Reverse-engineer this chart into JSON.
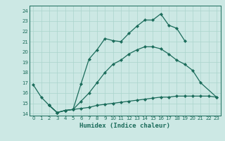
{
  "xlabel": "Humidex (Indice chaleur)",
  "bg_color": "#cce8e4",
  "grid_color": "#aad4cc",
  "line_color": "#1a6b5a",
  "xlim": [
    -0.5,
    23.5
  ],
  "ylim": [
    13.8,
    24.5
  ],
  "xticks": [
    0,
    1,
    2,
    3,
    4,
    5,
    6,
    7,
    8,
    9,
    10,
    11,
    12,
    13,
    14,
    15,
    16,
    17,
    18,
    19,
    20,
    21,
    22,
    23
  ],
  "yticks": [
    14,
    15,
    16,
    17,
    18,
    19,
    20,
    21,
    22,
    23,
    24
  ],
  "curve_top": {
    "x": [
      0,
      1,
      2,
      3,
      4,
      5,
      6,
      7,
      8,
      9,
      10,
      11,
      12,
      13,
      14,
      15,
      16,
      17,
      18,
      19
    ],
    "y": [
      16.8,
      15.6,
      14.8,
      14.1,
      14.3,
      14.4,
      16.9,
      19.3,
      20.2,
      21.3,
      21.1,
      21.0,
      21.8,
      22.5,
      23.1,
      23.1,
      23.7,
      22.6,
      22.3,
      21.1
    ]
  },
  "curve_mid": {
    "x": [
      2,
      3,
      4,
      5,
      6,
      7,
      8,
      9,
      10,
      11,
      12,
      13,
      14,
      15,
      16,
      17,
      18,
      19,
      20,
      21,
      23
    ],
    "y": [
      14.8,
      14.1,
      14.3,
      14.4,
      15.2,
      16.0,
      17.0,
      18.0,
      18.8,
      19.2,
      19.8,
      20.2,
      20.5,
      20.5,
      20.3,
      19.8,
      19.2,
      18.8,
      18.2,
      17.0,
      15.6
    ]
  },
  "curve_bot": {
    "x": [
      2,
      3,
      4,
      5,
      6,
      7,
      8,
      9,
      10,
      11,
      12,
      13,
      14,
      15,
      16,
      17,
      18,
      19,
      20,
      21,
      22,
      23
    ],
    "y": [
      14.8,
      14.1,
      14.3,
      14.4,
      14.5,
      14.6,
      14.8,
      14.9,
      15.0,
      15.1,
      15.2,
      15.3,
      15.4,
      15.5,
      15.6,
      15.6,
      15.7,
      15.7,
      15.7,
      15.7,
      15.7,
      15.6
    ]
  }
}
